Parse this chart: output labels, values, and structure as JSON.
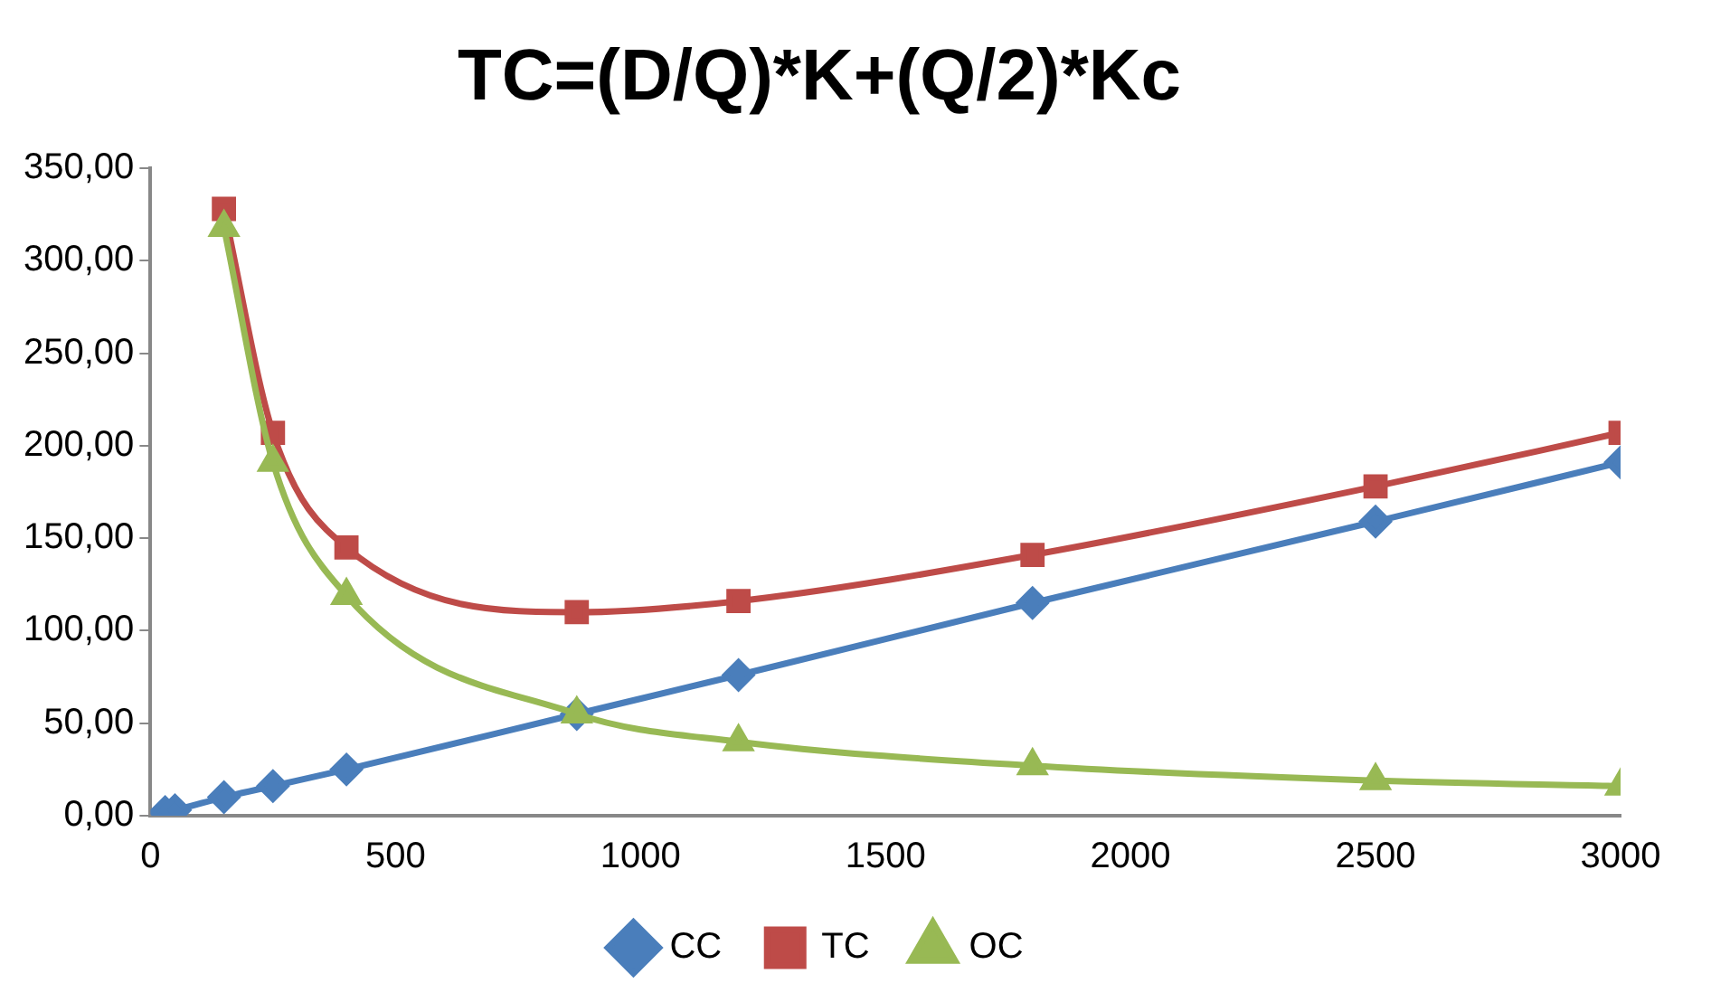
{
  "chart_data": {
    "type": "line",
    "title": "TC=(D/Q)*K+(Q/2)*Kc",
    "x": [
      30,
      50,
      150,
      250,
      400,
      870,
      1200,
      1800,
      2500,
      3000
    ],
    "series": [
      {
        "name": "CC",
        "color": "#4a7ebb",
        "marker": "diamond",
        "values": [
          2,
          3,
          10,
          16,
          25,
          55,
          76,
          115,
          159,
          191
        ]
      },
      {
        "name": "TC",
        "color": "#be4b48",
        "marker": "square",
        "values": [
          null,
          null,
          328,
          207,
          145,
          110,
          116,
          141,
          178,
          207
        ]
      },
      {
        "name": "OC",
        "color": "#98b954",
        "marker": "triangle",
        "values": [
          null,
          null,
          318,
          191,
          119,
          55,
          40,
          27,
          19,
          16
        ]
      }
    ],
    "xlim": [
      0,
      3000
    ],
    "xticks": [
      0,
      500,
      1000,
      1500,
      2000,
      2500,
      3000
    ],
    "ylim": [
      0,
      350
    ],
    "yticks": [
      {
        "value": 0,
        "label": "0,00"
      },
      {
        "value": 50,
        "label": "50,00"
      },
      {
        "value": 100,
        "label": "100,00"
      },
      {
        "value": 150,
        "label": "150,00"
      },
      {
        "value": 200,
        "label": "200,00"
      },
      {
        "value": 250,
        "label": "250,00"
      },
      {
        "value": 300,
        "label": "300,00"
      },
      {
        "value": 350,
        "label": "350,00"
      }
    ],
    "grid": false,
    "legend": "bottom"
  }
}
